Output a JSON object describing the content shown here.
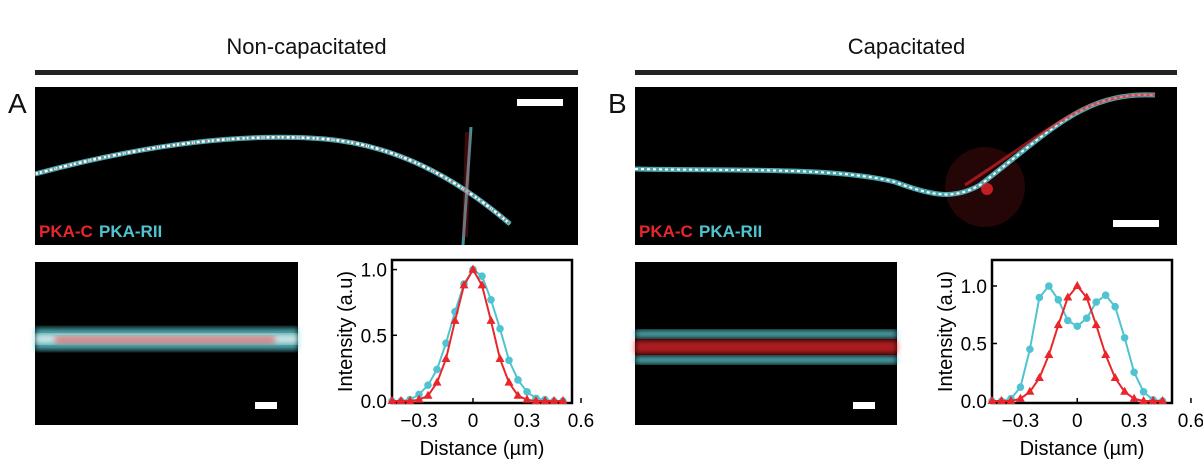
{
  "panels": [
    {
      "letter": "A",
      "title": "Non-capacitated",
      "label_red": "PKA-C",
      "label_cyan": "PKA-RII"
    },
    {
      "letter": "B",
      "title": "Capacitated",
      "label_red": "PKA-C",
      "label_cyan": "PKA-RII"
    }
  ],
  "colors": {
    "red": "#e8262b",
    "cyan": "#4fc4d0"
  },
  "chart_data": [
    {
      "type": "line",
      "xlabel": "Distance (µm)",
      "ylabel": "Intensity (a.u)",
      "xlim": [
        -0.45,
        0.55
      ],
      "ylim": [
        0,
        1.05
      ],
      "xticks": [
        "-0.3",
        "0",
        "0.3",
        "0.6"
      ],
      "xtick_values": [
        -0.3,
        0,
        0.3,
        0.6
      ],
      "yticks": [
        "0.0",
        "0.5",
        "1.0"
      ],
      "ytick_values": [
        0,
        0.5,
        1.0
      ],
      "series": [
        {
          "name": "PKA-RII",
          "marker": "circle",
          "x": [
            -0.45,
            -0.4,
            -0.35,
            -0.3,
            -0.25,
            -0.2,
            -0.15,
            -0.1,
            -0.05,
            0,
            0.05,
            0.1,
            0.15,
            0.2,
            0.25,
            0.3,
            0.35,
            0.4,
            0.45,
            0.5
          ],
          "y": [
            0,
            0,
            0.01,
            0.05,
            0.12,
            0.24,
            0.44,
            0.68,
            0.89,
            1.0,
            0.95,
            0.77,
            0.55,
            0.31,
            0.16,
            0.07,
            0.02,
            0.01,
            0,
            0
          ]
        },
        {
          "name": "PKA-C",
          "marker": "triangle",
          "x": [
            -0.45,
            -0.4,
            -0.35,
            -0.3,
            -0.25,
            -0.2,
            -0.15,
            -0.1,
            -0.05,
            0,
            0.05,
            0.1,
            0.15,
            0.2,
            0.25,
            0.3,
            0.35,
            0.4,
            0.45,
            0.5
          ],
          "y": [
            0,
            0,
            0,
            0.01,
            0.04,
            0.14,
            0.32,
            0.61,
            0.88,
            1.0,
            0.88,
            0.61,
            0.32,
            0.14,
            0.04,
            0.01,
            0,
            0,
            0,
            0
          ]
        }
      ]
    },
    {
      "type": "line",
      "xlabel": "Distance (µm)",
      "ylabel": "Intensity (a.u)",
      "xlim": [
        -0.45,
        0.5
      ],
      "ylim": [
        0,
        1.2
      ],
      "xticks": [
        "-0.3",
        "0",
        "0.3",
        "0.6"
      ],
      "xtick_values": [
        -0.3,
        0,
        0.3,
        0.6
      ],
      "yticks": [
        "0.0",
        "0.5",
        "1.0"
      ],
      "ytick_values": [
        0,
        0.5,
        1.0
      ],
      "series": [
        {
          "name": "PKA-RII",
          "marker": "circle",
          "x": [
            -0.45,
            -0.4,
            -0.35,
            -0.3,
            -0.25,
            -0.2,
            -0.15,
            -0.1,
            -0.05,
            0,
            0.05,
            0.1,
            0.15,
            0.2,
            0.25,
            0.3,
            0.35,
            0.4,
            0.45
          ],
          "y": [
            0,
            0,
            0.02,
            0.12,
            0.45,
            0.9,
            1.0,
            0.88,
            0.7,
            0.65,
            0.72,
            0.86,
            0.92,
            0.82,
            0.55,
            0.25,
            0.08,
            0.01,
            0
          ]
        },
        {
          "name": "PKA-C",
          "marker": "triangle",
          "x": [
            -0.45,
            -0.4,
            -0.35,
            -0.3,
            -0.25,
            -0.2,
            -0.15,
            -0.1,
            -0.05,
            0,
            0.05,
            0.1,
            0.15,
            0.2,
            0.25,
            0.3,
            0.35,
            0.4,
            0.45
          ],
          "y": [
            0,
            0,
            0,
            0.02,
            0.08,
            0.2,
            0.4,
            0.66,
            0.9,
            1.0,
            0.9,
            0.66,
            0.4,
            0.2,
            0.08,
            0.02,
            0,
            0,
            0
          ]
        }
      ]
    }
  ]
}
